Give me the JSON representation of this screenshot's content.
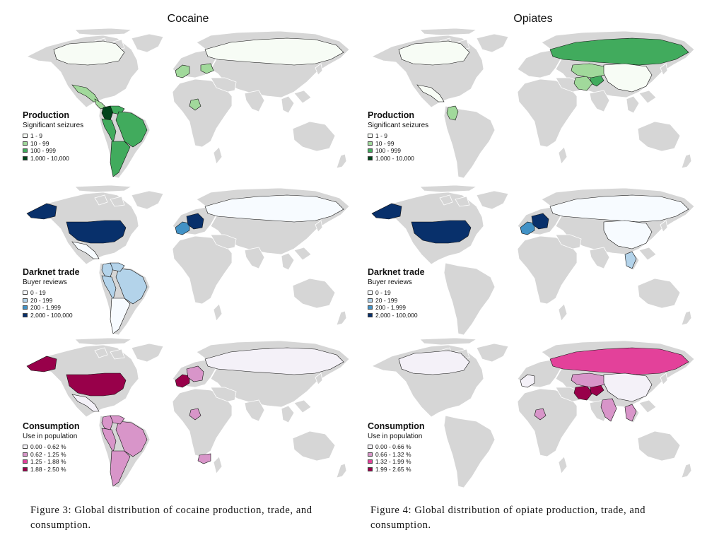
{
  "columns": [
    {
      "title": "Cocaine",
      "caption": "Figure 3: Global distribution of cocaine production, trade, and consumption.",
      "panels": [
        {
          "key": "production",
          "title": "Production",
          "subtitle": "Significant seizures",
          "legend": [
            "1 - 9",
            "10 - 99",
            "100 - 999",
            "1,000 - 10,000"
          ],
          "palette": [
            "#f7fcf5",
            "#a1d99b",
            "#41ab5d",
            "#00441b"
          ],
          "regions": {
            "north_america": 0,
            "mexico": 1,
            "central_america": 1,
            "colombia": 3,
            "venezuela": 2,
            "south_america_east": 2,
            "south_america_west": 2,
            "argentina_chile": 2,
            "western_europe": 1,
            "russia": 0,
            "nigeria": 1,
            "east_europe": 1
          }
        },
        {
          "key": "trade",
          "title": "Darknet trade",
          "subtitle": "Buyer reviews",
          "legend": [
            "0 - 19",
            "20 - 199",
            "200 - 1,999",
            "2,000 - 100,000"
          ],
          "palette": [
            "#f7fbff",
            "#b3d3ea",
            "#4292c6",
            "#08306b"
          ],
          "regions": {
            "usa": 3,
            "alaska": 3,
            "western_europe": 2,
            "central_europe": 3,
            "russia": 0,
            "south_america_east": 1,
            "south_america_west": 1,
            "colombia": 1,
            "venezuela": 1,
            "argentina_chile": 0,
            "mexico": 0
          }
        },
        {
          "key": "consumption",
          "title": "Consumption",
          "subtitle": "Use in population",
          "legend": [
            "0.00 - 0.62 %",
            "0.62 - 1.25 %",
            "1.25 - 1.88 %",
            "1.88 - 2.50 %"
          ],
          "palette": [
            "#f4f1f8",
            "#d895c9",
            "#e3419a",
            "#98004a"
          ],
          "regions": {
            "usa": 3,
            "alaska": 3,
            "western_europe": 3,
            "central_europe": 1,
            "russia": 0,
            "mexico": 0,
            "south_america_east": 1,
            "south_america_west": 1,
            "colombia": 1,
            "venezuela": 1,
            "argentina_chile": 1,
            "nigeria": 1,
            "south_africa": 1
          }
        }
      ]
    },
    {
      "title": "Opiates",
      "caption": "Figure 4: Global distribution of opiate production, trade, and consumption.",
      "panels": [
        {
          "key": "production",
          "title": "Production",
          "subtitle": "Significant seizures",
          "legend": [
            "1 - 9",
            "10 - 99",
            "100 - 999",
            "1,000 - 10,000"
          ],
          "palette": [
            "#f7fcf5",
            "#a1d99b",
            "#41ab5d",
            "#00441b"
          ],
          "regions": {
            "north_america": 0,
            "russia": 2,
            "afghanistan": 2,
            "iran": 1,
            "central_asia": 1,
            "china": 0,
            "colombia": 1,
            "mexico": 0
          }
        },
        {
          "key": "trade",
          "title": "Darknet trade",
          "subtitle": "Buyer reviews",
          "legend": [
            "0 - 19",
            "20 - 199",
            "200 - 1,999",
            "2,000 - 100,000"
          ],
          "palette": [
            "#f7fbff",
            "#b3d3ea",
            "#4292c6",
            "#08306b"
          ],
          "regions": {
            "usa": 3,
            "alaska": 3,
            "western_europe": 2,
            "central_europe": 3,
            "russia": 0,
            "china": 0,
            "southeast_asia": 1
          }
        },
        {
          "key": "consumption",
          "title": "Consumption",
          "subtitle": "Use in population",
          "legend": [
            "0.00 - 0.66 %",
            "0.66 - 1.32 %",
            "1.32 - 1.99 %",
            "1.99 - 2.65 %"
          ],
          "palette": [
            "#f4f1f8",
            "#d895c9",
            "#e3419a",
            "#98004a"
          ],
          "regions": {
            "north_america": 0,
            "russia": 2,
            "iran": 3,
            "afghanistan": 3,
            "central_asia": 1,
            "china": 0,
            "india": 1,
            "nigeria": 1,
            "southeast_asia": 1,
            "western_europe": 0
          }
        }
      ]
    }
  ]
}
